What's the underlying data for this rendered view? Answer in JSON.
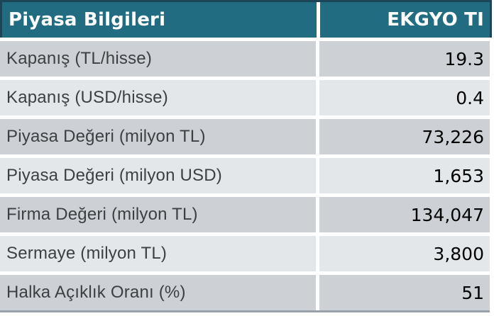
{
  "header": {
    "title": "Piyasa Bilgileri",
    "ticker": "EKGYO TI"
  },
  "table": {
    "rows": [
      {
        "label": "Kapanış (TL/hisse)",
        "value": "19.3"
      },
      {
        "label": "Kapanış (USD/hisse)",
        "value": "0.4"
      },
      {
        "label": "Piyasa Değeri (milyon TL)",
        "value": "73,226"
      },
      {
        "label": "Piyasa Değeri (milyon USD)",
        "value": "1,653"
      },
      {
        "label": "Firma Değeri (milyon TL)",
        "value": "134,047"
      },
      {
        "label": "Sermaye (milyon TL)",
        "value": "3,800"
      },
      {
        "label": "Halka Açıklık Oranı (%)",
        "value": "51"
      }
    ]
  },
  "colors": {
    "header_bg": "#216C81",
    "header_border": "#1C4558",
    "row_dark": "#CDD1D6",
    "row_light": "#E4E7E9",
    "bottom_border": "#9AA0A7",
    "label_color": "#3D3F41",
    "value_color": "#000000"
  }
}
